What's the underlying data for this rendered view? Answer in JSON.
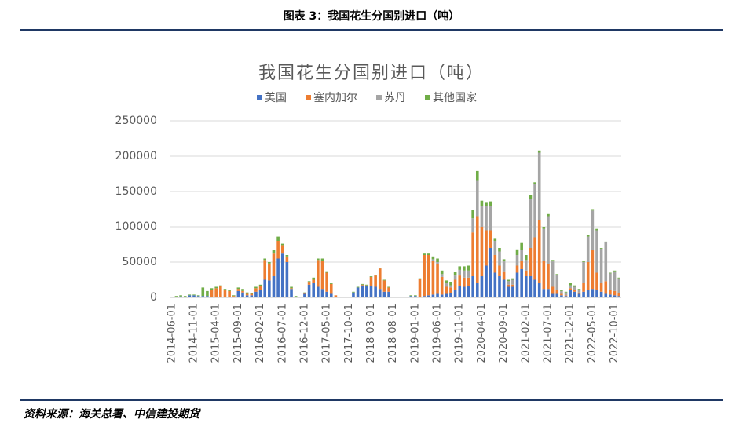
{
  "header": {
    "title": "图表 3：我国花生分国别进口（吨）"
  },
  "source": "资料来源：海关总署、中信建投期货",
  "chart_data": {
    "type": "stacked_bar",
    "title": "我国花生分国别进口（吨）",
    "categories": [
      "2014-06-01",
      null,
      null,
      null,
      null,
      "2014-11-01",
      null,
      null,
      null,
      null,
      "2015-04-01",
      null,
      null,
      null,
      null,
      "2015-09-01",
      null,
      null,
      null,
      null,
      "2016-02-01",
      null,
      null,
      null,
      null,
      "2016-07-01",
      null,
      null,
      null,
      null,
      "2016-12-01",
      null,
      null,
      null,
      null,
      "2017-05-01",
      null,
      null,
      null,
      null,
      "2017-10-01",
      null,
      null,
      null,
      null,
      "2018-03-01",
      null,
      null,
      null,
      null,
      "2018-08-01",
      null,
      null,
      null,
      null,
      "2019-01-01",
      null,
      null,
      null,
      null,
      "2019-06-01",
      null,
      null,
      null,
      null,
      "2019-11-01",
      null,
      null,
      null,
      null,
      "2020-04-01",
      null,
      null,
      null,
      null,
      "2020-09-01",
      null,
      null,
      null,
      null,
      "2021-02-01",
      null,
      null,
      null,
      null,
      "2021-07-01",
      null,
      null,
      null,
      null,
      "2021-12-01",
      null,
      null,
      null,
      null,
      "2022-05-01",
      null,
      null,
      null,
      null,
      "2022-10-01",
      null
    ],
    "series": [
      {
        "name": "美国",
        "color": "#4472c4",
        "values": [
          0,
          1000,
          1500,
          1000,
          3000,
          3000,
          2000,
          2000,
          2000,
          1000,
          1000,
          1000,
          1000,
          1000,
          1000,
          9000,
          7000,
          3000,
          3000,
          8000,
          10000,
          25000,
          24000,
          30000,
          55000,
          62000,
          50000,
          12000,
          1000,
          0,
          5000,
          18000,
          20000,
          15000,
          12000,
          8000,
          5000,
          1000,
          0,
          0,
          1000,
          7000,
          14000,
          17000,
          16000,
          16000,
          15000,
          12000,
          8000,
          8000,
          1000,
          0,
          0,
          0,
          2000,
          2000,
          1000,
          2000,
          3000,
          4000,
          5000,
          4000,
          5000,
          6000,
          10000,
          16000,
          15000,
          16000,
          30000,
          20000,
          30000,
          45000,
          70000,
          35000,
          30000,
          25000,
          15000,
          15000,
          35000,
          40000,
          30000,
          30000,
          25000,
          20000,
          12000,
          12000,
          5000,
          5000,
          3000,
          2000,
          10000,
          8000,
          5000,
          8000,
          10000,
          12000,
          10000,
          8000,
          5000,
          4000,
          3000,
          2000
        ]
      },
      {
        "name": "塞内加尔",
        "color": "#ed7d31",
        "values": [
          0,
          0,
          0,
          0,
          0,
          0,
          0,
          0,
          0,
          10000,
          12000,
          15000,
          10000,
          8000,
          1000,
          3000,
          2000,
          2000,
          2000,
          5000,
          6000,
          28000,
          24000,
          32000,
          25000,
          12000,
          8000,
          1000,
          0,
          0,
          1000,
          3000,
          5000,
          38000,
          40000,
          27000,
          14000,
          2000,
          1000,
          0,
          0,
          0,
          0,
          1000,
          1000,
          13000,
          16000,
          29000,
          16000,
          6000,
          0,
          0,
          0,
          0,
          0,
          0,
          25000,
          58000,
          57000,
          48000,
          42000,
          25000,
          10000,
          8000,
          15000,
          15000,
          13000,
          12000,
          62000,
          95000,
          70000,
          50000,
          25000,
          25000,
          15000,
          12000,
          3000,
          3000,
          10000,
          12000,
          8000,
          40000,
          60000,
          90000,
          40000,
          35000,
          10000,
          5000,
          2000,
          1000,
          3000,
          3000,
          2000,
          12000,
          40000,
          55000,
          25000,
          12000,
          18000,
          6000,
          6000,
          4000
        ]
      },
      {
        "name": "苏丹",
        "color": "#a5a5a5",
        "values": [
          0,
          0,
          0,
          0,
          0,
          0,
          0,
          0,
          0,
          0,
          0,
          0,
          0,
          0,
          0,
          0,
          0,
          0,
          0,
          0,
          0,
          0,
          0,
          0,
          0,
          0,
          0,
          0,
          0,
          0,
          0,
          0,
          0,
          0,
          0,
          0,
          0,
          0,
          0,
          0,
          0,
          0,
          0,
          0,
          0,
          0,
          0,
          0,
          0,
          0,
          0,
          0,
          0,
          0,
          0,
          0,
          0,
          0,
          0,
          2000,
          3000,
          4000,
          5000,
          3000,
          6000,
          8000,
          10000,
          10000,
          20000,
          50000,
          30000,
          35000,
          35000,
          20000,
          20000,
          14000,
          5000,
          7000,
          15000,
          15000,
          15000,
          70000,
          75000,
          95000,
          45000,
          68000,
          36000,
          22000,
          4000,
          4000,
          4000,
          4000,
          4000,
          30000,
          36000,
          56000,
          60000,
          49000,
          55000,
          24000,
          28000,
          21000
        ]
      },
      {
        "name": "其他国家",
        "color": "#70ad47",
        "values": [
          1000,
          1000,
          1500,
          1000,
          1000,
          1000,
          1000,
          12000,
          7000,
          2000,
          2000,
          1000,
          1000,
          1000,
          1000,
          2000,
          3000,
          2000,
          1000,
          2000,
          2000,
          2000,
          2000,
          5000,
          6000,
          2000,
          2000,
          2000,
          1000,
          0,
          1000,
          2000,
          3000,
          2000,
          3000,
          2000,
          1000,
          0,
          0,
          0,
          0,
          1000,
          1000,
          1000,
          1000,
          1000,
          1000,
          1000,
          1000,
          1000,
          0,
          0,
          1000,
          0,
          1000,
          1000,
          1000,
          2000,
          2000,
          4000,
          5000,
          5000,
          4000,
          5000,
          5000,
          5000,
          6000,
          7000,
          12000,
          14000,
          7000,
          4000,
          6000,
          4000,
          5000,
          3000,
          2000,
          2000,
          8000,
          10000,
          7000,
          5000,
          3000,
          3000,
          3000,
          3000,
          2000,
          1000,
          1000,
          1000,
          3000,
          2000,
          1000,
          1000,
          2000,
          2000,
          2000,
          1000,
          1000,
          1000,
          1000,
          1000
        ]
      }
    ],
    "ylim": [
      0,
      250000
    ],
    "yticks": [
      0,
      50000,
      100000,
      150000,
      200000,
      250000
    ],
    "grid": true,
    "legend": "top"
  }
}
